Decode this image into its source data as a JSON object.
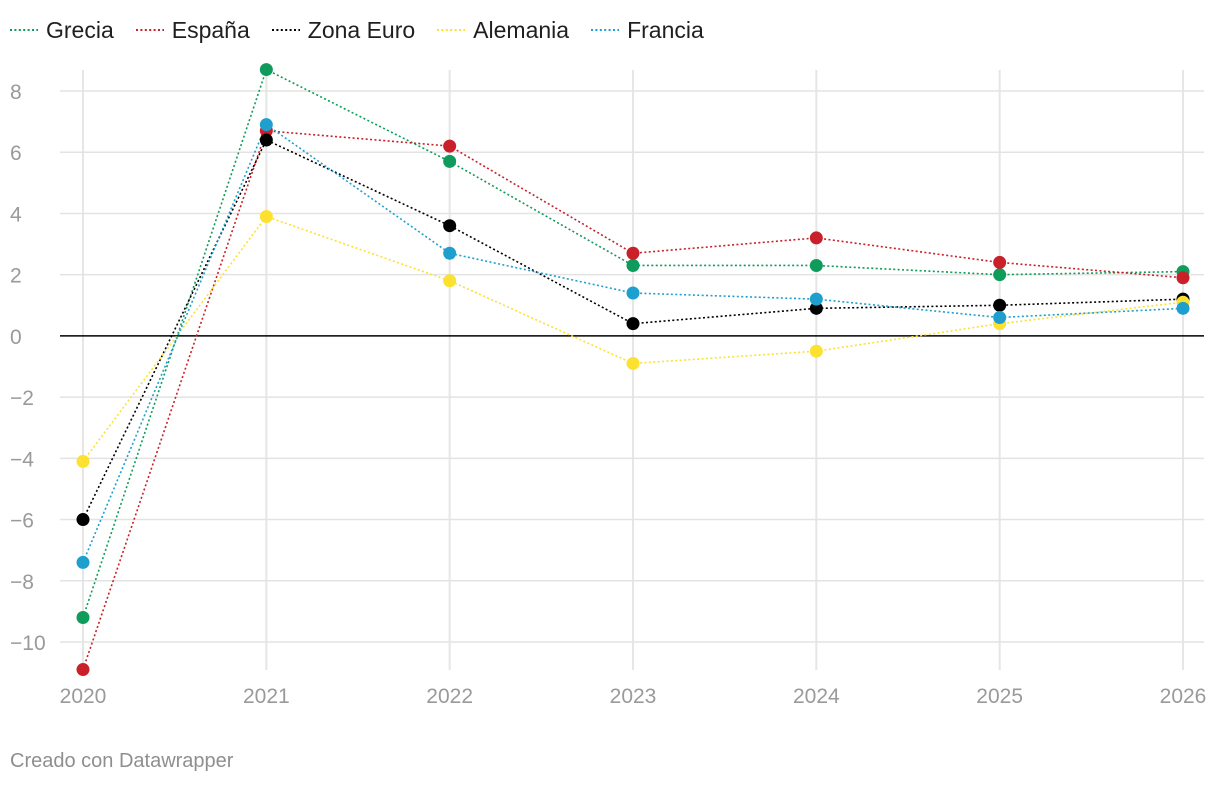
{
  "chart_data": {
    "type": "line",
    "title": "",
    "xlabel": "",
    "ylabel": "",
    "x": [
      2020,
      2021,
      2022,
      2023,
      2024,
      2025,
      2026
    ],
    "ylim": [
      -11,
      9
    ],
    "yticks": [
      8,
      6,
      4,
      2,
      0,
      -2,
      -4,
      -6,
      -8,
      -10
    ],
    "ytick_labels": [
      "8",
      "6",
      "4",
      "2",
      "0",
      "−2",
      "−4",
      "−6",
      "−8",
      "−10"
    ],
    "xtick_labels": [
      "2020",
      "2021",
      "2022",
      "2023",
      "2024",
      "2025",
      "2026"
    ],
    "grid": true,
    "legend_position": "top-left",
    "series": [
      {
        "name": "Grecia",
        "color": "#0e9b5b",
        "values": [
          -9.2,
          8.7,
          5.7,
          2.3,
          2.3,
          2.0,
          2.1
        ]
      },
      {
        "name": "España",
        "color": "#c9202a",
        "values": [
          -10.9,
          6.7,
          6.2,
          2.7,
          3.2,
          2.4,
          1.9
        ]
      },
      {
        "name": "Zona Euro",
        "color": "#000000",
        "values": [
          -6.0,
          6.4,
          3.6,
          0.4,
          0.9,
          1.0,
          1.2
        ]
      },
      {
        "name": "Alemania",
        "color": "#fde130",
        "values": [
          -4.1,
          3.9,
          1.8,
          -0.9,
          -0.5,
          0.4,
          1.1
        ]
      },
      {
        "name": "Francia",
        "color": "#1f9fce",
        "values": [
          -7.4,
          6.9,
          2.7,
          1.4,
          1.2,
          0.6,
          0.9
        ]
      }
    ],
    "credit": "Creado con Datawrapper"
  }
}
